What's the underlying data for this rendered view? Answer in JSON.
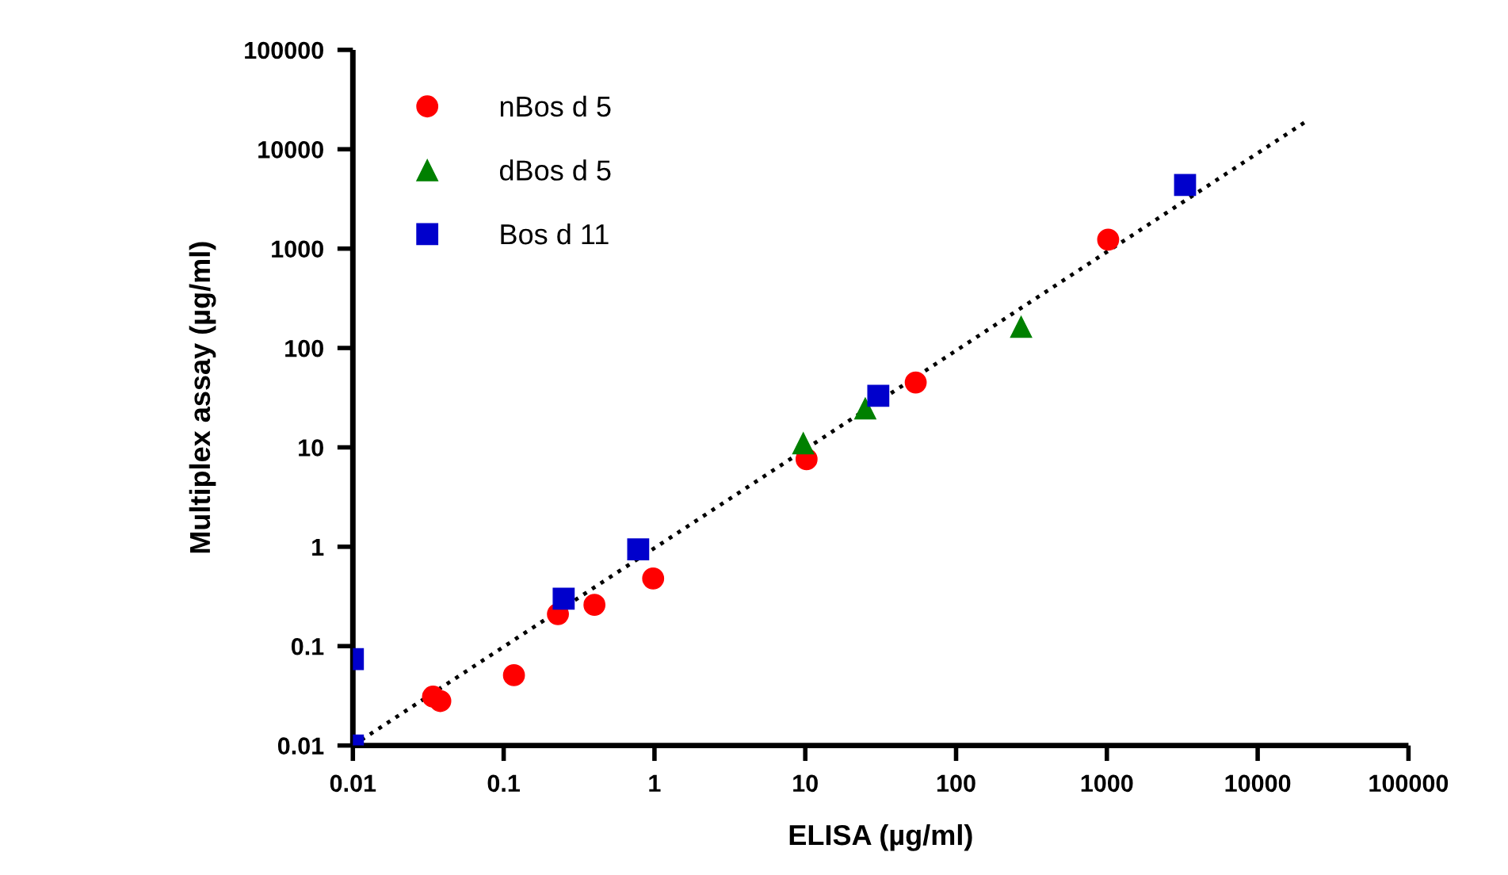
{
  "chart_data": {
    "type": "scatter",
    "xlabel": "ELISA (µg/ml)",
    "ylabel": "Multiplex assay (µg/ml)",
    "log": "xy",
    "xlim": [
      0.01,
      100000
    ],
    "ylim": [
      0.01,
      100000
    ],
    "xticks": [
      0.01,
      0.1,
      1,
      10,
      100,
      1000,
      10000,
      100000
    ],
    "yticks": [
      0.01,
      0.1,
      1,
      10,
      100,
      1000,
      10000,
      100000
    ],
    "grid": false,
    "legend": "top left",
    "series": [
      {
        "name": "nBos d 5",
        "color": "#ff0000",
        "marker": "circle",
        "x": [
          0.034,
          0.038,
          0.117,
          0.229,
          0.4,
          0.98,
          10.2,
          54,
          1020
        ],
        "values": [
          0.031,
          0.028,
          0.051,
          0.21,
          0.26,
          0.48,
          7.6,
          45,
          1230
        ]
      },
      {
        "name": "dBos d 5",
        "color": "#008000",
        "marker": "triangle",
        "x": [
          9.7,
          25,
          270
        ],
        "values": [
          11,
          24.6,
          163
        ]
      },
      {
        "name": "Bos d 11",
        "color": "#0000cc",
        "marker": "square",
        "x": [
          0.01,
          0.01,
          0.25,
          0.78,
          30.5,
          3300
        ],
        "values": [
          0.074,
          0.01,
          0.3,
          0.94,
          33,
          4370
        ]
      },
      {
        "type": "line",
        "color": "#000000",
        "marker": "none",
        "line_style": "dotted",
        "x": [
          0.01,
          22000
        ],
        "values": [
          0.01,
          20000
        ]
      }
    ]
  }
}
